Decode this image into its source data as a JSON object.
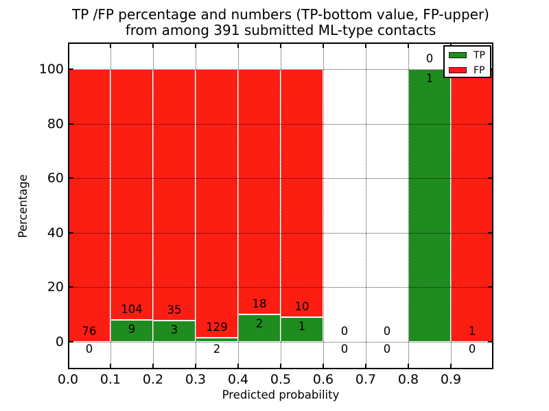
{
  "figure": {
    "title_line1": "TP /FP percentage and numbers (TP-bottom value, FP-upper)",
    "title_line2": "from among 391 submitted ML-type contacts"
  },
  "axes": {
    "xlabel": "Predicted probability",
    "ylabel": "Percentage",
    "xtick_labels": [
      "0.0",
      "0.1",
      "0.2",
      "0.3",
      "0.4",
      "0.5",
      "0.6",
      "0.7",
      "0.8",
      "0.9"
    ],
    "ytick_values": [
      0,
      20,
      40,
      60,
      80,
      100
    ],
    "xlim": [
      0.0,
      1.0
    ],
    "ylim": [
      -10,
      110
    ],
    "grid_style": "dotted"
  },
  "legend": {
    "position": "upper right",
    "items": [
      {
        "label": "TP",
        "color": "#1e8c1e"
      },
      {
        "label": "FP",
        "color": "#fc1d13"
      }
    ]
  },
  "chart_data": {
    "type": "bar",
    "stacked": true,
    "normalized_to_percent": 100,
    "title": "TP /FP percentage and numbers (TP-bottom value, FP-upper) from among 391 submitted ML-type contacts",
    "xlabel": "Predicted probability",
    "ylabel": "Percentage",
    "total_contacts": 391,
    "bin_width": 0.1,
    "bin_starts": [
      0.0,
      0.1,
      0.2,
      0.3,
      0.4,
      0.5,
      0.6,
      0.7,
      0.8,
      0.9
    ],
    "categories": [
      "0.0-0.1",
      "0.1-0.2",
      "0.2-0.3",
      "0.3-0.4",
      "0.4-0.5",
      "0.5-0.6",
      "0.6-0.7",
      "0.7-0.8",
      "0.8-0.9",
      "0.9-1.0"
    ],
    "series": [
      {
        "name": "TP",
        "color": "#1e8c1e",
        "counts": [
          0,
          9,
          3,
          2,
          2,
          1,
          0,
          0,
          1,
          0
        ]
      },
      {
        "name": "FP",
        "color": "#fc1d13",
        "counts": [
          76,
          104,
          35,
          129,
          18,
          10,
          0,
          0,
          0,
          1
        ]
      }
    ],
    "tp_percent_of_bin": [
      0.0,
      8.0,
      7.9,
      1.5,
      10.0,
      9.1,
      null,
      null,
      100.0,
      0.0
    ],
    "annotation_rule": "FP count printed above green segment top, TP count printed below it (below axis when segment is tiny or empty)"
  }
}
